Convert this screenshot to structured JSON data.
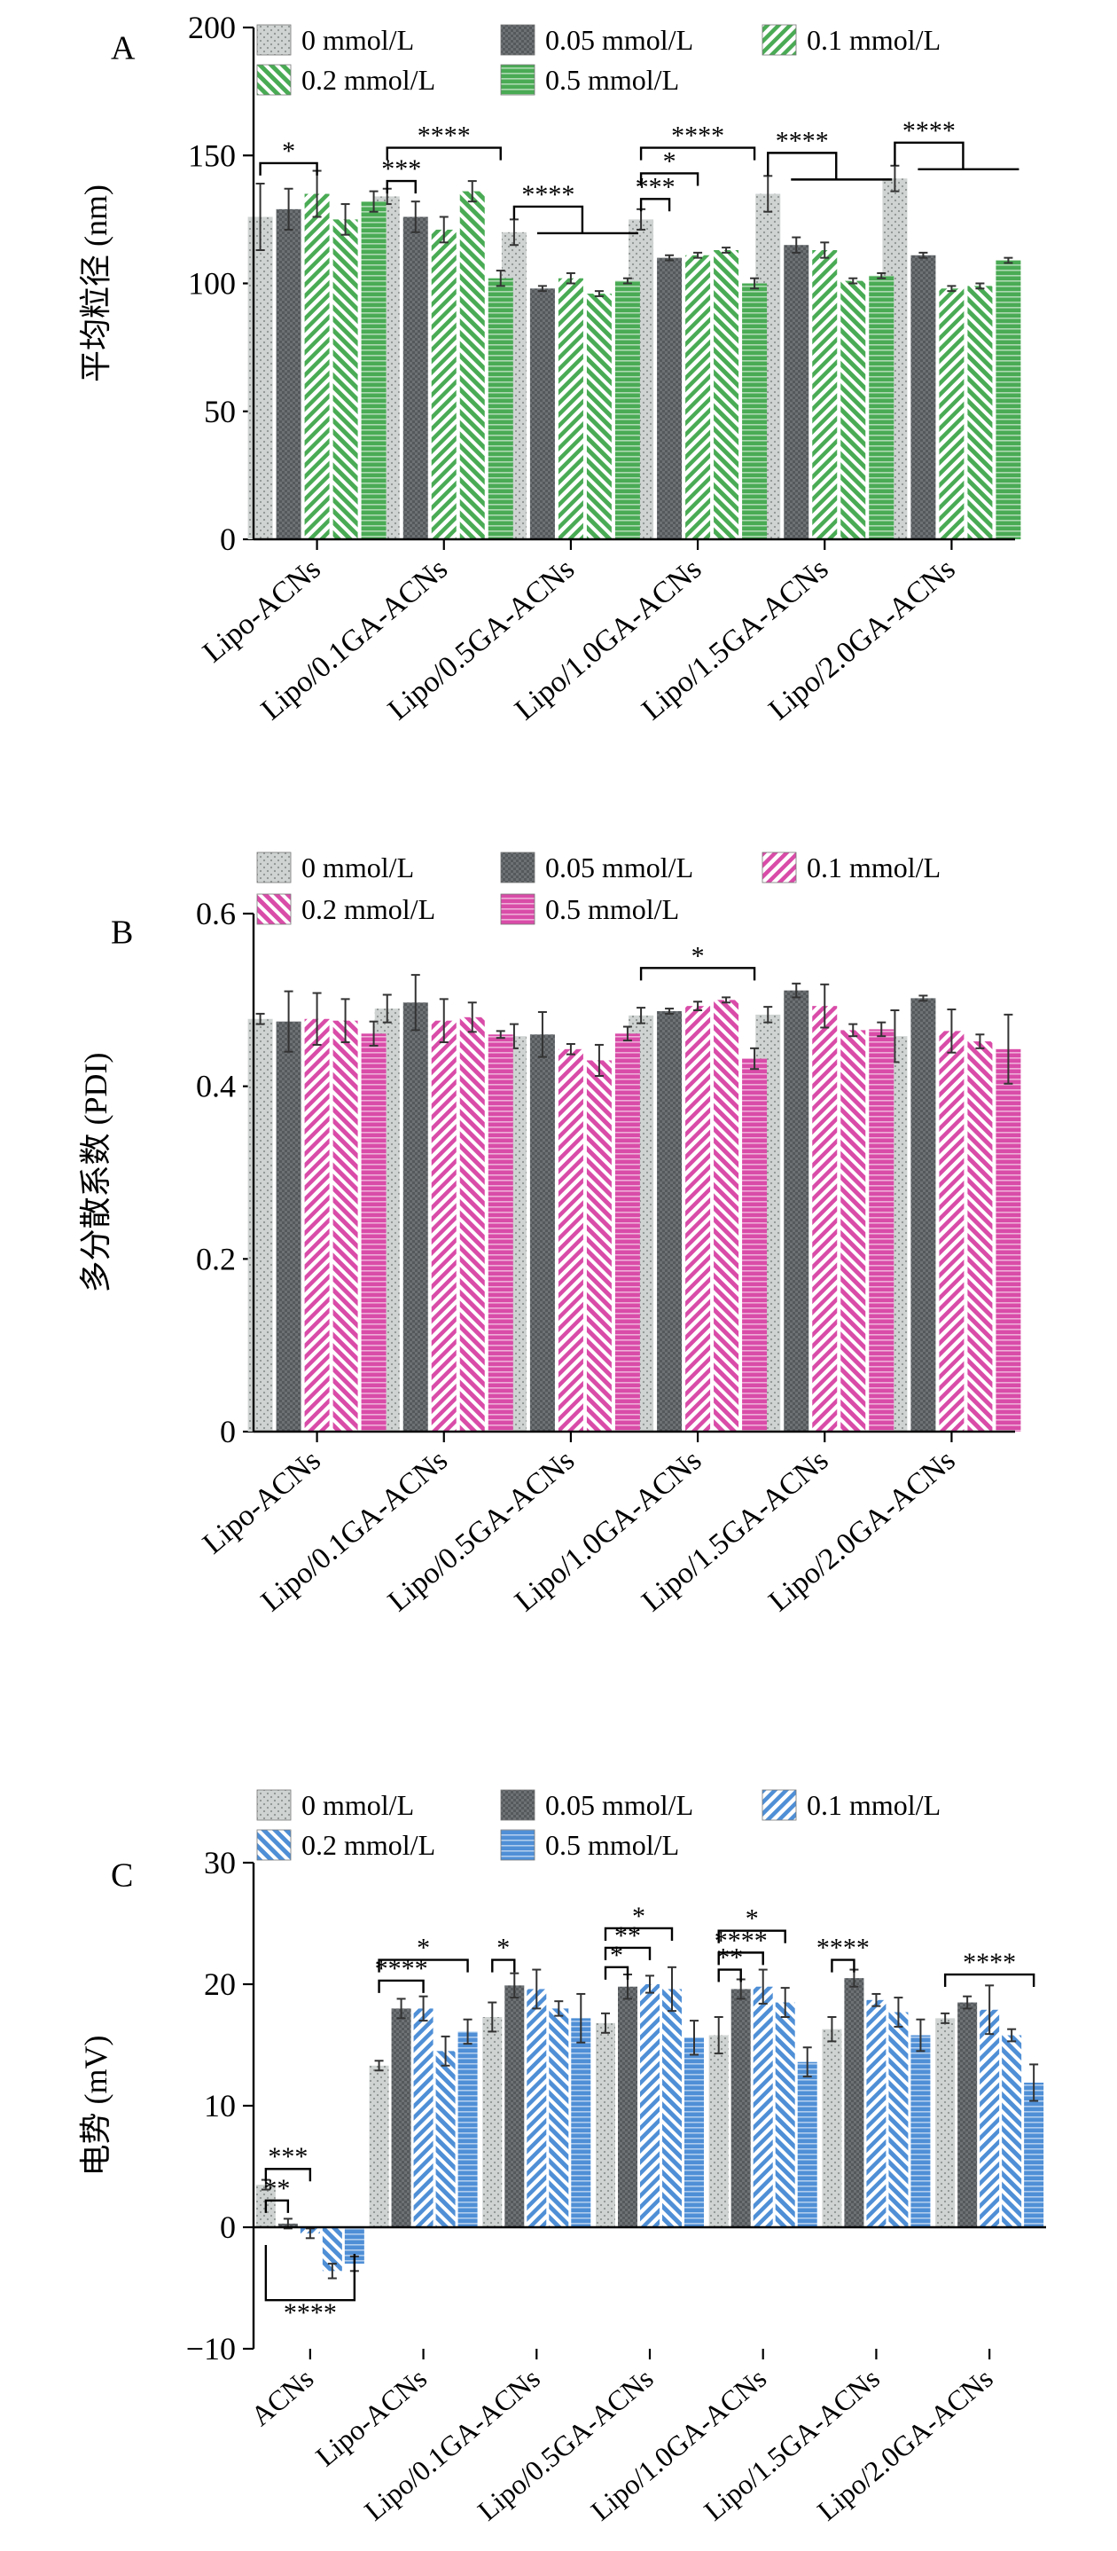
{
  "legend_labels": [
    "0 mmol/L",
    "0.05 mmol/L",
    "0.1 mmol/L",
    "0.2 mmol/L",
    "0.5 mmol/L"
  ],
  "chart_data": [
    {
      "type": "bar",
      "panel_label": "A",
      "ylabel": "平均粒径 (nm)",
      "ylim": [
        0,
        200
      ],
      "yticks": [
        0,
        50,
        100,
        150,
        200
      ],
      "legend": "top",
      "accent": "#4aab55",
      "categories": [
        "Lipo-ACNs",
        "Lipo/0.1GA-ACNs",
        "Lipo/0.5GA-ACNs",
        "Lipo/1.0GA-ACNs",
        "Lipo/1.5GA-ACNs",
        "Lipo/2.0GA-ACNs"
      ],
      "series": [
        {
          "name": "0 mmol/L",
          "values": [
            126,
            134,
            120,
            125,
            135,
            141
          ],
          "errors": [
            13,
            3,
            5,
            4,
            7,
            5
          ]
        },
        {
          "name": "0.05 mmol/L",
          "values": [
            129,
            126,
            98,
            110,
            115,
            111
          ],
          "errors": [
            8,
            6,
            1,
            1,
            3,
            1
          ]
        },
        {
          "name": "0.1 mmol/L",
          "values": [
            135,
            121,
            102,
            111,
            113,
            98
          ],
          "errors": [
            9,
            5,
            2,
            1,
            3,
            1
          ]
        },
        {
          "name": "0.2 mmol/L",
          "values": [
            125,
            136,
            96,
            113,
            101,
            99
          ],
          "errors": [
            6,
            4,
            1,
            1,
            1,
            1
          ]
        },
        {
          "name": "0.5 mmol/L",
          "values": [
            132,
            102,
            101,
            100,
            103,
            109
          ],
          "errors": [
            4,
            3,
            1,
            2,
            1,
            1
          ]
        }
      ],
      "annotations": [
        {
          "text": "*",
          "category": 0,
          "from": 0,
          "to": 2,
          "y": 147
        },
        {
          "text": "***",
          "category": 1,
          "from": 0,
          "to": 1,
          "y": 140
        },
        {
          "text": "****",
          "category": 1,
          "from": 0,
          "to": 4,
          "y": 153
        },
        {
          "text": "****",
          "category": 2,
          "from": 0,
          "to": 4,
          "y": 130,
          "bracket": "group"
        },
        {
          "text": "***",
          "category": 3,
          "from": 0,
          "to": 1,
          "y": 133
        },
        {
          "text": "*",
          "category": 3,
          "from": 0,
          "to": 2,
          "y": 143
        },
        {
          "text": "****",
          "category": 3,
          "from": 0,
          "to": 4,
          "y": 153
        },
        {
          "text": "****",
          "category": 4,
          "from": 0,
          "to": 4,
          "y": 151,
          "bracket": "group"
        },
        {
          "text": "****",
          "category": 5,
          "from": 0,
          "to": 4,
          "y": 155,
          "bracket": "group"
        }
      ]
    },
    {
      "type": "bar",
      "panel_label": "B",
      "ylabel": "多分散系数 (PDI)",
      "ylim": [
        0,
        0.6
      ],
      "yticks": [
        0,
        0.2,
        0.4,
        0.6
      ],
      "legend": "top",
      "accent": "#d94ca8",
      "categories": [
        "Lipo-ACNs",
        "Lipo/0.1GA-ACNs",
        "Lipo/0.5GA-ACNs",
        "Lipo/1.0GA-ACNs",
        "Lipo/1.5GA-ACNs",
        "Lipo/2.0GA-ACNs"
      ],
      "series": [
        {
          "name": "0 mmol/L",
          "values": [
            0.478,
            0.49,
            0.458,
            0.482,
            0.483,
            0.458
          ],
          "errors": [
            0.006,
            0.016,
            0.014,
            0.009,
            0.009,
            0.03
          ]
        },
        {
          "name": "0.05 mmol/L",
          "values": [
            0.475,
            0.497,
            0.46,
            0.487,
            0.511,
            0.502
          ],
          "errors": [
            0.035,
            0.032,
            0.026,
            0.003,
            0.008,
            0.003
          ]
        },
        {
          "name": "0.1 mmol/L",
          "values": [
            0.478,
            0.476,
            0.443,
            0.493,
            0.493,
            0.464
          ],
          "errors": [
            0.03,
            0.025,
            0.006,
            0.005,
            0.025,
            0.025
          ]
        },
        {
          "name": "0.2 mmol/L",
          "values": [
            0.476,
            0.48,
            0.43,
            0.5,
            0.465,
            0.452
          ],
          "errors": [
            0.025,
            0.017,
            0.018,
            0.003,
            0.007,
            0.008
          ]
        },
        {
          "name": "0.5 mmol/L",
          "values": [
            0.461,
            0.46,
            0.461,
            0.432,
            0.466,
            0.443
          ],
          "errors": [
            0.014,
            0.004,
            0.008,
            0.012,
            0.008,
            0.04
          ]
        }
      ],
      "annotations": [
        {
          "text": "*",
          "category": 3,
          "from": 0,
          "to": 4,
          "y": 0.537
        }
      ]
    },
    {
      "type": "bar",
      "panel_label": "C",
      "ylabel": "电势 (mV)",
      "ylim": [
        -10,
        30
      ],
      "yticks": [
        -10,
        0,
        10,
        20,
        30
      ],
      "legend": "top",
      "accent": "#4f8fd6",
      "categories": [
        "ACNs",
        "Lipo-ACNs",
        "Lipo/0.1GA-ACNs",
        "Lipo/0.5GA-ACNs",
        "Lipo/1.0GA-ACNs",
        "Lipo/1.5GA-ACNs",
        "Lipo/2.0GA-ACNs"
      ],
      "series": [
        {
          "name": "0 mmol/L",
          "values": [
            3.5,
            13.3,
            17.3,
            16.8,
            15.8,
            16.3,
            17.2
          ],
          "errors": [
            0.4,
            0.4,
            1.2,
            0.8,
            1.5,
            1.0,
            0.4
          ]
        },
        {
          "name": "0.05 mmol/L",
          "values": [
            0.3,
            18.0,
            19.9,
            19.8,
            19.6,
            20.5,
            18.5
          ],
          "errors": [
            0.4,
            0.8,
            1.0,
            1.0,
            0.8,
            0.7,
            0.5
          ]
        },
        {
          "name": "0.1 mmol/L",
          "values": [
            -0.5,
            18.0,
            19.6,
            20.0,
            19.8,
            18.7,
            17.9
          ],
          "errors": [
            0.4,
            1.0,
            1.6,
            0.7,
            1.4,
            0.5,
            2.0
          ]
        },
        {
          "name": "0.2 mmol/L",
          "values": [
            -3.6,
            14.5,
            18.0,
            19.6,
            18.5,
            17.7,
            15.8
          ],
          "errors": [
            0.6,
            1.2,
            0.6,
            1.8,
            1.2,
            1.2,
            0.5
          ]
        },
        {
          "name": "0.5 mmol/L",
          "values": [
            -3.0,
            16.1,
            17.2,
            15.6,
            13.6,
            15.8,
            11.9
          ],
          "errors": [
            0.6,
            1.0,
            2.0,
            1.4,
            1.2,
            1.3,
            1.5
          ]
        }
      ],
      "annotations": [
        {
          "text": "***",
          "category": 0,
          "from": 0,
          "to": 2,
          "y": 4.8
        },
        {
          "text": "**",
          "category": 0,
          "from": 0,
          "to": 1,
          "y": 2.2
        },
        {
          "text": "****",
          "category": 0,
          "from": 0,
          "to": 4,
          "y": -6.0,
          "below": true
        },
        {
          "text": "****",
          "category": 1,
          "from": 0,
          "to": 2,
          "y": 20.3
        },
        {
          "text": "*",
          "category": 1,
          "from": 0,
          "to": 4,
          "y": 22.0
        },
        {
          "text": "*",
          "category": 2,
          "from": 0,
          "to": 1,
          "y": 22.0
        },
        {
          "text": "*",
          "category": 3,
          "from": 0,
          "to": 1,
          "y": 21.4
        },
        {
          "text": "**",
          "category": 3,
          "from": 0,
          "to": 2,
          "y": 23.0
        },
        {
          "text": "*",
          "category": 3,
          "from": 0,
          "to": 3,
          "y": 24.6
        },
        {
          "text": "**",
          "category": 4,
          "from": 0,
          "to": 1,
          "y": 21.2
        },
        {
          "text": "****",
          "category": 4,
          "from": 0,
          "to": 2,
          "y": 22.6
        },
        {
          "text": "*",
          "category": 4,
          "from": 0,
          "to": 3,
          "y": 24.4
        },
        {
          "text": "****",
          "category": 5,
          "from": 0,
          "to": 1,
          "y": 22.0
        },
        {
          "text": "****",
          "category": 6,
          "from": 0,
          "to": 4,
          "y": 20.8
        }
      ]
    }
  ]
}
